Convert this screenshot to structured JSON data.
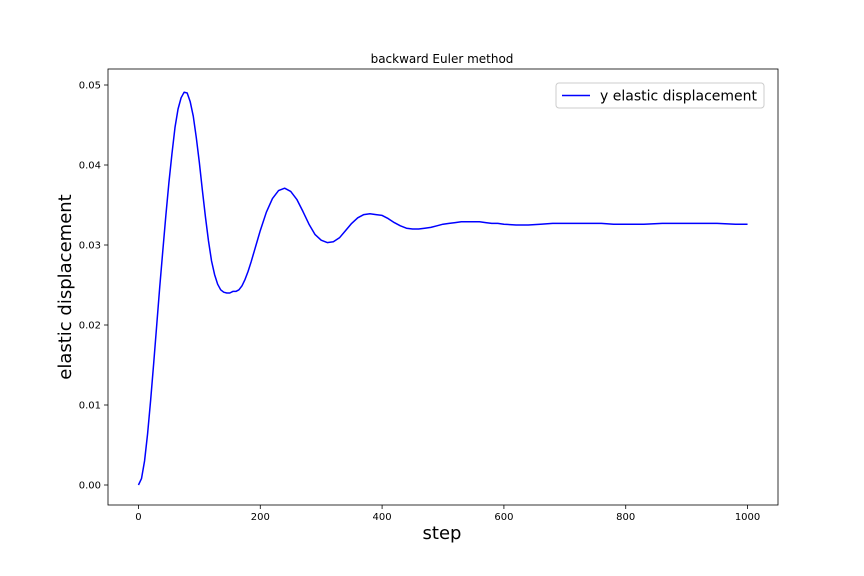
{
  "chart_data": {
    "type": "line",
    "title": "backward Euler method",
    "xlabel": "step",
    "ylabel": "elastic displacement",
    "xlim": [
      -50,
      1050
    ],
    "ylim": [
      -0.0025,
      0.052
    ],
    "xticks": [
      0,
      200,
      400,
      600,
      800,
      1000
    ],
    "yticks": [
      0.0,
      0.01,
      0.02,
      0.03,
      0.04,
      0.05
    ],
    "xtick_labels": [
      "0",
      "200",
      "400",
      "600",
      "800",
      "1000"
    ],
    "ytick_labels": [
      "0.00",
      "0.01",
      "0.02",
      "0.03",
      "0.04",
      "0.05"
    ],
    "grid": false,
    "legend_position": "top-right",
    "series": [
      {
        "name": "y elastic displacement",
        "color": "#0000ff",
        "x": [
          0,
          5,
          10,
          15,
          20,
          25,
          30,
          35,
          40,
          45,
          50,
          55,
          60,
          65,
          70,
          75,
          80,
          85,
          90,
          95,
          100,
          105,
          110,
          115,
          120,
          125,
          130,
          135,
          140,
          145,
          150,
          155,
          160,
          165,
          170,
          175,
          180,
          185,
          190,
          195,
          200,
          210,
          220,
          230,
          240,
          250,
          260,
          270,
          280,
          290,
          300,
          310,
          320,
          330,
          340,
          350,
          360,
          370,
          380,
          390,
          400,
          410,
          420,
          430,
          440,
          450,
          460,
          470,
          480,
          490,
          500,
          510,
          520,
          530,
          540,
          550,
          560,
          570,
          580,
          590,
          600,
          620,
          640,
          660,
          680,
          700,
          720,
          740,
          760,
          780,
          800,
          830,
          860,
          890,
          920,
          950,
          980,
          1000
        ],
        "values": [
          0.0,
          0.0008,
          0.003,
          0.0064,
          0.0106,
          0.0152,
          0.02,
          0.0248,
          0.0293,
          0.0337,
          0.0378,
          0.0414,
          0.0447,
          0.047,
          0.0484,
          0.0491,
          0.049,
          0.0479,
          0.0461,
          0.0434,
          0.0403,
          0.0368,
          0.0335,
          0.0305,
          0.028,
          0.0263,
          0.0251,
          0.0244,
          0.0241,
          0.024,
          0.024,
          0.0242,
          0.0242,
          0.0244,
          0.0249,
          0.0257,
          0.0267,
          0.0279,
          0.0292,
          0.0305,
          0.0318,
          0.0341,
          0.0358,
          0.0368,
          0.0371,
          0.0367,
          0.0357,
          0.0342,
          0.0326,
          0.0313,
          0.0306,
          0.0303,
          0.0304,
          0.0309,
          0.0318,
          0.0327,
          0.0334,
          0.0338,
          0.0339,
          0.0338,
          0.0337,
          0.0333,
          0.0328,
          0.0324,
          0.0321,
          0.032,
          0.032,
          0.0321,
          0.0322,
          0.0324,
          0.0326,
          0.0327,
          0.0328,
          0.0329,
          0.0329,
          0.0329,
          0.0329,
          0.0328,
          0.0327,
          0.0327,
          0.0326,
          0.0325,
          0.0325,
          0.0326,
          0.0327,
          0.0327,
          0.0327,
          0.0327,
          0.0327,
          0.0326,
          0.0326,
          0.0326,
          0.0327,
          0.0327,
          0.0327,
          0.0327,
          0.0326,
          0.0326
        ]
      }
    ]
  }
}
